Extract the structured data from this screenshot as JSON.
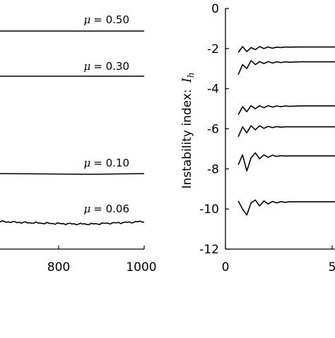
{
  "chart_data": [
    {
      "type": "line",
      "xlim": [
        500,
        1000
      ],
      "grid": false,
      "x_ticks": [
        "800",
        "1000"
      ],
      "annotations": [
        {
          "label": "μ = 0.50",
          "mu_symbol": "μ",
          "value": "0.50"
        },
        {
          "label": "μ = 0.30",
          "mu_symbol": "μ",
          "value": "0.30"
        },
        {
          "label": "μ = 0.10",
          "mu_symbol": "μ",
          "value": "0.10"
        },
        {
          "label": "μ = 0.06",
          "mu_symbol": "μ",
          "value": "0.06"
        }
      ],
      "series": [
        {
          "name": "μ = 0.50",
          "x": [
            500,
            1000
          ],
          "y": [
            0.5,
            0.5
          ]
        },
        {
          "name": "μ = 0.30",
          "x": [
            500,
            1000
          ],
          "y": [
            0.3,
            0.3
          ]
        },
        {
          "name": "μ = 0.10",
          "x": [
            500,
            875,
            1000
          ],
          "y": [
            0.1,
            0.098,
            0.1
          ]
        },
        {
          "name": "μ = 0.06",
          "x": [
            500,
            700,
            875,
            1000
          ],
          "y": [
            0.06,
            0.058,
            0.056,
            0.06
          ]
        }
      ]
    },
    {
      "type": "line",
      "ylabel": "Instability index: I_h",
      "ylabel_text": "Instability index:",
      "ylabel_symbol": "I",
      "ylabel_subscript": "h",
      "ylim": [
        -12,
        0
      ],
      "xlim": [
        0,
        10
      ],
      "grid": false,
      "x_ticks": [
        "0",
        "5"
      ],
      "y_ticks": [
        "0",
        "-2",
        "-4",
        "-6",
        "-8",
        "-10",
        "-12"
      ],
      "series": [
        {
          "x": [
            0.6,
            0.8,
            1.0,
            1.2,
            1.4,
            1.6,
            1.8,
            2.0,
            2.2,
            2.4,
            2.6,
            2.8,
            3.0,
            3.5,
            4.0,
            5.0,
            6.0,
            7.0
          ],
          "y": [
            -2.2,
            -1.9,
            -2.15,
            -1.95,
            -2.05,
            -1.9,
            -2.0,
            -1.92,
            -1.98,
            -1.93,
            -1.95,
            -1.92,
            -1.93,
            -1.92,
            -1.92,
            -1.92,
            -1.92,
            -1.92
          ]
        },
        {
          "x": [
            0.6,
            0.8,
            1.0,
            1.2,
            1.4,
            1.6,
            1.8,
            2.0,
            2.2,
            2.4,
            2.6,
            2.8,
            3.0,
            3.5,
            4.0,
            5.0,
            6.0,
            7.0
          ],
          "y": [
            -3.3,
            -2.8,
            -3.0,
            -2.6,
            -2.8,
            -2.65,
            -2.75,
            -2.65,
            -2.72,
            -2.66,
            -2.7,
            -2.66,
            -2.68,
            -2.66,
            -2.66,
            -2.66,
            -2.66,
            -2.66
          ]
        },
        {
          "x": [
            0.6,
            0.8,
            1.0,
            1.2,
            1.4,
            1.6,
            1.8,
            2.0,
            2.2,
            2.4,
            2.6,
            2.8,
            3.0,
            3.5,
            4.0,
            5.0,
            6.0,
            7.0
          ],
          "y": [
            -5.3,
            -4.9,
            -5.15,
            -4.85,
            -5.0,
            -4.85,
            -4.95,
            -4.85,
            -4.92,
            -4.86,
            -4.9,
            -4.86,
            -4.88,
            -4.86,
            -4.86,
            -4.86,
            -4.86,
            -4.86
          ]
        },
        {
          "x": [
            0.6,
            0.8,
            1.0,
            1.2,
            1.4,
            1.6,
            1.8,
            2.0,
            2.2,
            2.4,
            2.6,
            2.8,
            3.0,
            3.5,
            4.0,
            5.0,
            6.0,
            7.0
          ],
          "y": [
            -6.4,
            -5.9,
            -6.2,
            -5.85,
            -6.05,
            -5.85,
            -5.98,
            -5.88,
            -5.94,
            -5.89,
            -5.92,
            -5.9,
            -5.9,
            -5.9,
            -5.9,
            -5.9,
            -5.9,
            -5.9
          ]
        },
        {
          "x": [
            0.6,
            0.8,
            1.0,
            1.2,
            1.4,
            1.6,
            1.8,
            2.0,
            2.2,
            2.4,
            2.6,
            2.8,
            3.0,
            3.5,
            4.0,
            5.0,
            6.0,
            7.0
          ],
          "y": [
            -7.8,
            -7.3,
            -8.1,
            -7.45,
            -7.2,
            -7.5,
            -7.3,
            -7.42,
            -7.32,
            -7.38,
            -7.34,
            -7.36,
            -7.35,
            -7.35,
            -7.35,
            -7.35,
            -7.35,
            -7.35
          ]
        },
        {
          "x": [
            0.6,
            0.8,
            1.0,
            1.2,
            1.4,
            1.6,
            1.8,
            2.0,
            2.2,
            2.4,
            2.6,
            2.8,
            3.0,
            3.5,
            4.0,
            5.0,
            6.0,
            7.0
          ],
          "y": [
            -9.6,
            -10.0,
            -10.3,
            -9.7,
            -9.55,
            -9.85,
            -9.6,
            -9.75,
            -9.62,
            -9.7,
            -9.63,
            -9.67,
            -9.64,
            -9.64,
            -9.64,
            -9.64,
            -9.64,
            -9.64
          ]
        }
      ]
    }
  ]
}
